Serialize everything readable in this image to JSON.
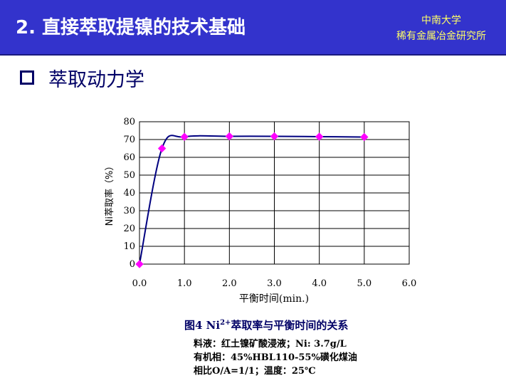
{
  "header": {
    "title": "2. 直接萃取提镍的技术基础",
    "org_line1": "中南大学",
    "org_line2": "稀有金属冶金研究所"
  },
  "section": {
    "title": "萃取动力学"
  },
  "chart_data": {
    "type": "line",
    "ylabel": "Ni萃取率（%）",
    "xlabel": "平衡时间(min.)",
    "xlim": [
      0,
      6
    ],
    "ylim": [
      0,
      80
    ],
    "x_ticks": [
      "0.0",
      "1.0",
      "2.0",
      "3.0",
      "4.0",
      "5.0",
      "6.0"
    ],
    "y_ticks": [
      "0",
      "10",
      "20",
      "30",
      "40",
      "50",
      "60",
      "70",
      "80"
    ],
    "grid": true,
    "series": [
      {
        "x": [
          0,
          0.5,
          1.0,
          2.0,
          3.0,
          4.0,
          5.0
        ],
        "y": [
          0,
          65,
          71.5,
          71.8,
          71.8,
          71.6,
          71.4
        ],
        "line_color": "#000080",
        "marker_color": "#ff00ff"
      }
    ]
  },
  "caption": {
    "prefix": "图4 Ni",
    "sup": "2+",
    "suffix": "萃取率与平衡时间的关系"
  },
  "notes": {
    "line1": "料液：红土镍矿酸浸液；Ni: 3.7g/L",
    "line2": "有机相：45%HBL110-55%磺化煤油",
    "line3": "相比O/A=1/1；温度：25℃"
  }
}
